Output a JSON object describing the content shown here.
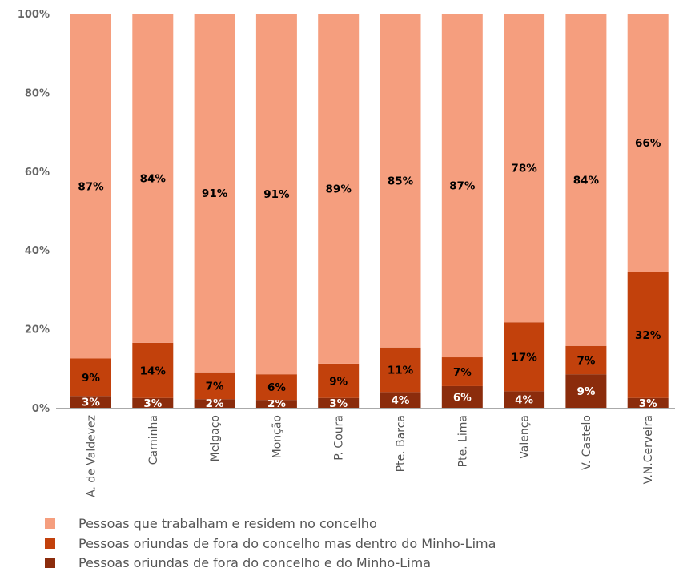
{
  "chart_data": {
    "type": "bar",
    "stacked": true,
    "categories": [
      "A. de Valdevez",
      "Caminha",
      "Melgaço",
      "Monção",
      "P. Coura",
      "Pte. Barca",
      "Pte. Lima",
      "Valença",
      "V. Castelo",
      "V.N.Cerveira"
    ],
    "series": [
      {
        "name": "Pessoas  oriundas de fora do concelho e do Minho-Lima",
        "color": "#8B2C0C",
        "label_color": "#ffffff",
        "values": [
          3,
          2.5,
          2.2,
          2,
          2.5,
          4,
          5.5,
          4.2,
          8.5,
          2.5
        ],
        "labels": [
          "3%",
          "3%",
          "2%",
          "2%",
          "3%",
          "4%",
          "6%",
          "4%",
          "9%",
          "3%"
        ]
      },
      {
        "name": "Pessoas oriundas de fora do concelho mas dentro do Minho-Lima",
        "color": "#C2410C",
        "label_color": "#000000",
        "values": [
          9.5,
          14,
          6.8,
          6.5,
          8.7,
          11.3,
          7.3,
          17.5,
          7.2,
          32
        ],
        "labels": [
          "9%",
          "14%",
          "7%",
          "6%",
          "9%",
          "11%",
          "7%",
          "17%",
          "7%",
          "32%"
        ]
      },
      {
        "name": "Pessoas que trabalham e residem no concelho",
        "color": "#F59E7E",
        "label_color": "#000000",
        "values": [
          87.5,
          83.5,
          91,
          91.5,
          88.8,
          84.7,
          87.2,
          78.3,
          84.3,
          65.5
        ],
        "labels": [
          "87%",
          "84%",
          "91%",
          "91%",
          "89%",
          "85%",
          "87%",
          "78%",
          "84%",
          "66%"
        ]
      }
    ],
    "ylim": [
      0,
      100
    ],
    "yticks": [
      "0%",
      "20%",
      "40%",
      "60%",
      "80%",
      "100%"
    ],
    "grid": false,
    "legend_position": "bottom",
    "legend": [
      {
        "label": "Pessoas que trabalham e residem no concelho",
        "color": "#F59E7E"
      },
      {
        "label": "Pessoas oriundas de fora do concelho mas dentro do Minho-Lima",
        "color": "#C2410C"
      },
      {
        "label": "Pessoas  oriundas de fora do concelho e do Minho-Lima",
        "color": "#8B2C0C"
      }
    ]
  }
}
